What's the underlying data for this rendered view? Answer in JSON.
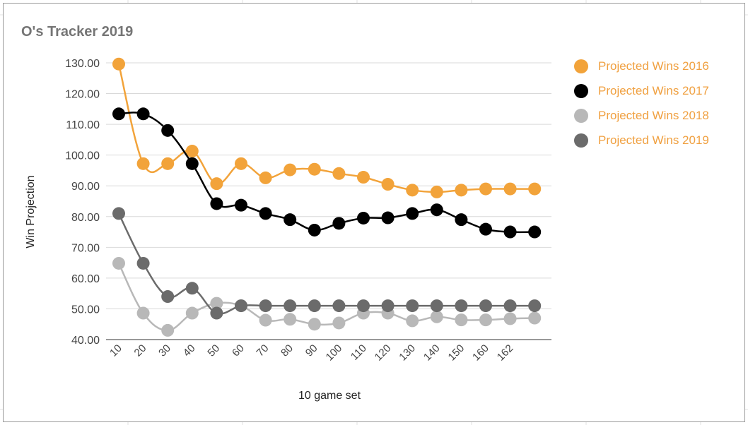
{
  "chart_data": {
    "type": "line",
    "title": "O's Tracker 2019",
    "xlabel": "10 game set",
    "ylabel": "Win Projection",
    "ylim": [
      40,
      130
    ],
    "yticks": [
      "130.00",
      "120.00",
      "110.00",
      "100.00",
      "90.00",
      "80.00",
      "70.00",
      "60.00",
      "50.00",
      "40.00"
    ],
    "categories": [
      "10",
      "20",
      "30",
      "40",
      "50",
      "60",
      "70",
      "80",
      "90",
      "100",
      "110",
      "120",
      "130",
      "140",
      "150",
      "160",
      "162",
      ""
    ],
    "grid": true,
    "legend_position": "right",
    "series": [
      {
        "name": "Projected Wins 2016",
        "color": "#f2a33a",
        "values": [
          129.6,
          97.2,
          97.2,
          101.3,
          90.7,
          97.2,
          92.6,
          95.2,
          95.4,
          94.0,
          92.8,
          90.5,
          88.6,
          88.0,
          88.6,
          89.0,
          89.0,
          89.0
        ]
      },
      {
        "name": "Projected Wins 2017",
        "color": "#000000",
        "values": [
          113.4,
          113.4,
          108.0,
          97.2,
          84.2,
          83.7,
          81.0,
          79.0,
          75.6,
          77.8,
          79.5,
          79.6,
          81.0,
          82.2,
          79.0,
          75.9,
          75.0,
          75.0
        ]
      },
      {
        "name": "Projected Wins 2018",
        "color": "#b8b8b8",
        "values": [
          64.8,
          48.6,
          43.0,
          48.6,
          51.8,
          51.0,
          46.3,
          46.6,
          45.0,
          45.4,
          48.6,
          48.6,
          46.1,
          47.4,
          46.4,
          46.4,
          46.8,
          47.0
        ]
      },
      {
        "name": "Projected Wins 2019",
        "color": "#6b6b6b",
        "values": [
          81.0,
          64.8,
          54.0,
          56.7,
          48.6,
          51.0,
          51.0,
          51.0,
          51.0,
          51.0,
          51.0,
          51.0,
          51.0,
          51.0,
          51.0,
          51.0,
          51.0,
          51.0
        ]
      }
    ]
  }
}
